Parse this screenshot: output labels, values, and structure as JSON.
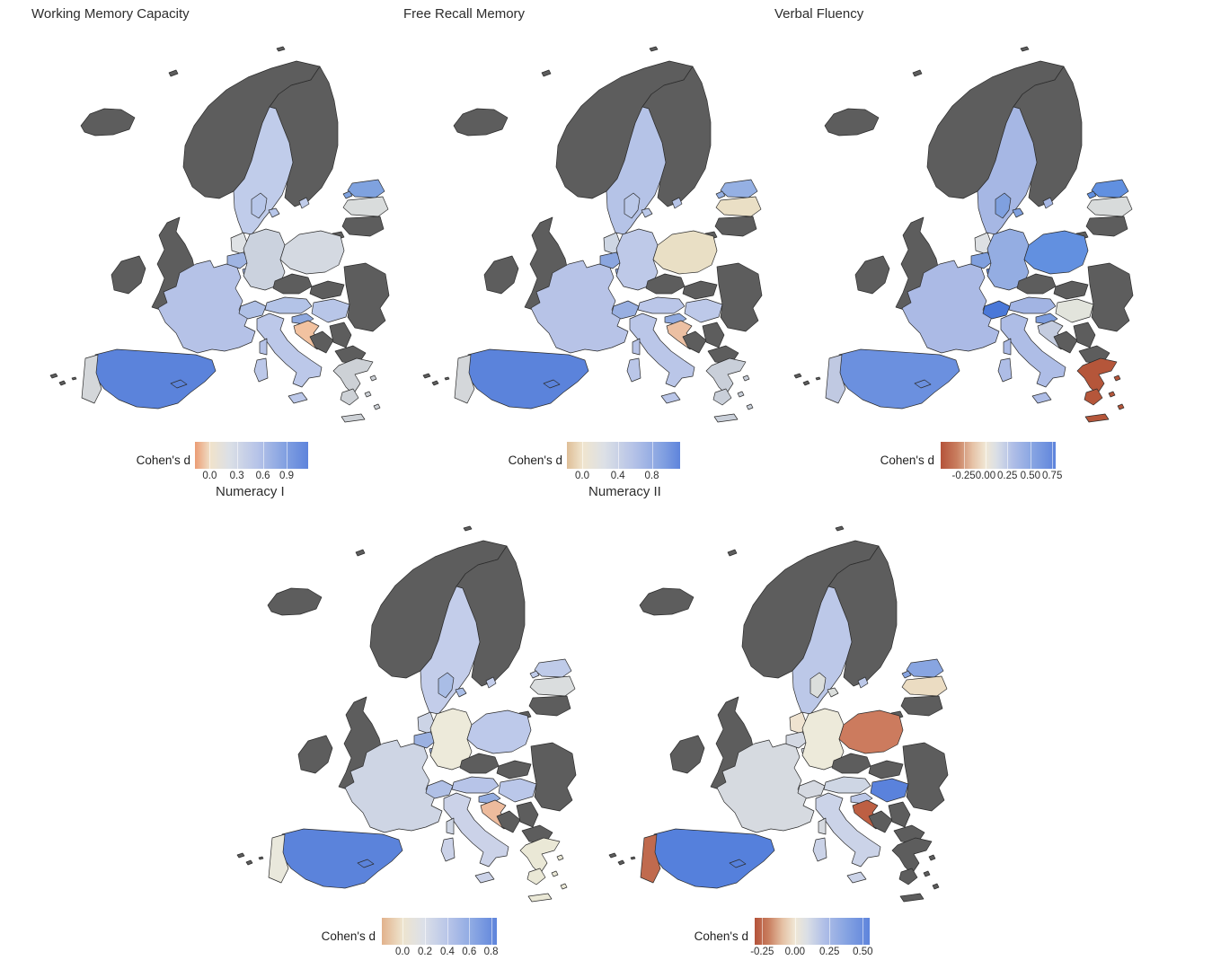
{
  "figure": {
    "background_color": "#FFFFFF",
    "not_surveyed_color": "#5D5D5D",
    "border_color": "#2B2B2B",
    "panels": [
      {
        "title": "Working Memory Capacity",
        "legend": {
          "label": "Cohen's d",
          "ticks": [
            {
              "label": "0.0",
              "pos": 0.13
            },
            {
              "label": "0.3",
              "pos": 0.37
            },
            {
              "label": "0.6",
              "pos": 0.6
            },
            {
              "label": "0.9",
              "pos": 0.81
            }
          ],
          "gradient": [
            {
              "color": "#EB9C74",
              "at": 0
            },
            {
              "color": "#F0E2CB",
              "at": 14
            },
            {
              "color": "#DCE0E6",
              "at": 30
            },
            {
              "color": "#B7C4E8",
              "at": 55
            },
            {
              "color": "#82A0E1",
              "at": 80
            },
            {
              "color": "#5E84DC",
              "at": 100
            }
          ]
        },
        "countries": {
          "sweden": "#C0CCEA",
          "denmark": "#B7C6E9",
          "estonia": "#7FA2DF",
          "latvia": "#D9DCDC",
          "netherlands": "#DFE2E5",
          "belgium": "#9FB4E2",
          "luxembourg": "#9FB4E2",
          "germany": "#CBD2DE",
          "poland": "#D4D9E1",
          "france": "#B5C2E7",
          "switzerland": "#AFC0E6",
          "austria": "#B3C3E7",
          "hungary": "#B8C6E8",
          "slovenia": "#8FA9DE",
          "croatia": "#F2C2A0",
          "italy": "#BCC8E9",
          "spain": "#5B83DB",
          "portugal": "#D4D7DA",
          "greece": "#CDD1D6"
        }
      },
      {
        "title": "Free Recall Memory",
        "legend": {
          "label": "Cohen's d",
          "ticks": [
            {
              "label": "0.0",
              "pos": 0.135
            },
            {
              "label": "0.4",
              "pos": 0.45
            },
            {
              "label": "0.8",
              "pos": 0.75
            }
          ],
          "gradient": [
            {
              "color": "#DEBE97",
              "at": 0
            },
            {
              "color": "#F0E5CE",
              "at": 14
            },
            {
              "color": "#DCE0E6",
              "at": 33
            },
            {
              "color": "#B3C1E7",
              "at": 60
            },
            {
              "color": "#82A0E1",
              "at": 85
            },
            {
              "color": "#5E84DC",
              "at": 100
            }
          ]
        },
        "countries": {
          "sweden": "#B5C3E7",
          "denmark": "#BAC8E9",
          "estonia": "#95B0E3",
          "latvia": "#EADFC5",
          "netherlands": "#CED6E3",
          "belgium": "#8BA6DF",
          "luxembourg": "#8BA6DF",
          "germany": "#BEC9E8",
          "poland": "#E9DFC5",
          "france": "#B7C3E7",
          "switzerland": "#98AFE1",
          "austria": "#BAC6E8",
          "hungary": "#BDC9E9",
          "slovenia": "#90AADF",
          "croatia": "#ECC0A3",
          "italy": "#BAC6E8",
          "spain": "#5B83DB",
          "portugal": "#D4D7DA",
          "greece": "#C9CFD9"
        }
      },
      {
        "title": "Verbal Fluency",
        "legend": {
          "label": "Cohen's d",
          "ticks": [
            {
              "label": "-0.25",
              "pos": 0.2
            },
            {
              "label": "0.00",
              "pos": 0.39
            },
            {
              "label": "0.25",
              "pos": 0.58
            },
            {
              "label": "0.50",
              "pos": 0.78
            },
            {
              "label": "0.75",
              "pos": 0.97
            }
          ],
          "gradient": [
            {
              "color": "#B4533A",
              "at": 0
            },
            {
              "color": "#C97E5F",
              "at": 14
            },
            {
              "color": "#E6C3A7",
              "at": 28
            },
            {
              "color": "#F0E7D5",
              "at": 39
            },
            {
              "color": "#D9DEE6",
              "at": 49
            },
            {
              "color": "#AFBEE7",
              "at": 63
            },
            {
              "color": "#87A4E2",
              "at": 80
            },
            {
              "color": "#5E84DC",
              "at": 100
            }
          ]
        },
        "countries": {
          "sweden": "#A6B7E4",
          "denmark": "#7FA0DF",
          "estonia": "#6190E0",
          "latvia": "#D8DBDB",
          "netherlands": "#DDE0E3",
          "belgium": "#7F9FDE",
          "luxembourg": "#5E86DC",
          "germany": "#94ADE2",
          "poland": "#6290E0",
          "france": "#ABBAE5",
          "switzerland": "#4A78D8",
          "austria": "#A2B4E3",
          "hungary": "#E2E4DC",
          "slovenia": "#7C9CDD",
          "croatia": "#C4CCDF",
          "italy": "#AEBDE6",
          "spain": "#6B90DF",
          "portugal": "#C0C9E2",
          "greece": "#B5563A"
        }
      },
      {
        "title": "Numeracy I",
        "legend": {
          "label": "Cohen's d",
          "ticks": [
            {
              "label": "0.0",
              "pos": 0.18
            },
            {
              "label": "0.2",
              "pos": 0.375
            },
            {
              "label": "0.4",
              "pos": 0.57
            },
            {
              "label": "0.6",
              "pos": 0.76
            },
            {
              "label": "0.8",
              "pos": 0.95
            }
          ],
          "gradient": [
            {
              "color": "#E2B28C",
              "at": 0
            },
            {
              "color": "#EEE4CE",
              "at": 18
            },
            {
              "color": "#DCE0E8",
              "at": 36
            },
            {
              "color": "#B7C4E8",
              "at": 58
            },
            {
              "color": "#8CA8E3",
              "at": 79
            },
            {
              "color": "#5E84DC",
              "at": 100
            }
          ]
        },
        "countries": {
          "sweden": "#C3CDEA",
          "denmark": "#A9BDE6",
          "estonia": "#BFCBE9",
          "latvia": "#DADDDE",
          "netherlands": "#CCD4E6",
          "belgium": "#9BB1E1",
          "luxembourg": "#9BB1E1",
          "germany": "#EDEADA",
          "poland": "#BDC9EA",
          "france": "#CED5E4",
          "switzerland": "#B0C0E6",
          "austria": "#B7C4E8",
          "hungary": "#BAC7E9",
          "slovenia": "#94ADE0",
          "croatia": "#EDBB9D",
          "italy": "#CBD2E8",
          "spain": "#5B83DB",
          "portugal": "#E9E8DC",
          "greece": "#EAE8D6"
        }
      },
      {
        "title": "Numeracy II",
        "legend": {
          "label": "Cohen's d",
          "ticks": [
            {
              "label": "-0.25",
              "pos": 0.065
            },
            {
              "label": "0.00",
              "pos": 0.35
            },
            {
              "label": "0.25",
              "pos": 0.65
            },
            {
              "label": "0.50",
              "pos": 0.94
            }
          ],
          "gradient": [
            {
              "color": "#B4533A",
              "at": 0
            },
            {
              "color": "#C97E5F",
              "at": 12
            },
            {
              "color": "#E4C0A3",
              "at": 24
            },
            {
              "color": "#F0E7D5",
              "at": 35
            },
            {
              "color": "#D9DEE6",
              "at": 46
            },
            {
              "color": "#AFBEE7",
              "at": 61
            },
            {
              "color": "#87A4E2",
              "at": 79
            },
            {
              "color": "#5E84DC",
              "at": 100
            }
          ]
        },
        "countries": {
          "sweden": "#BCC8E8",
          "denmark": "#DBDEDC",
          "estonia": "#88A5E1",
          "latvia": "#EBDCC2",
          "netherlands": "#EFE3D0",
          "belgium": "#D3D8E2",
          "luxembourg": "#D3D8E2",
          "germany": "#EDEADA",
          "poland": "#CC7B5E",
          "france": "#D6DAE0",
          "switzerland": "#D5D9E1",
          "austria": "#CED6E4",
          "hungary": "#5A82DC",
          "slovenia": "#BBC7E6",
          "croatia": "#BD5F43",
          "italy": "#CBD3E8",
          "spain": "#5580DC",
          "portugal": "#C06A4E",
          "greece": null
        }
      }
    ]
  }
}
